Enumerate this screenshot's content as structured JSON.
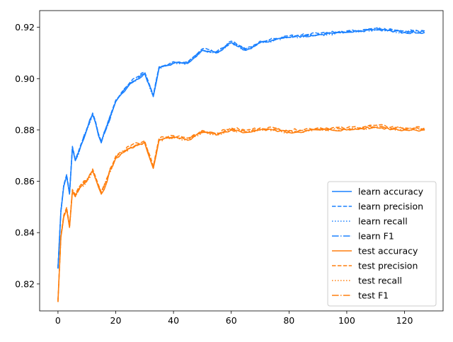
{
  "chart_data": {
    "type": "line",
    "title": "",
    "xlabel": "",
    "ylabel": "",
    "xlim": [
      -6.35,
      133.35
    ],
    "ylim": [
      0.8095,
      0.9265
    ],
    "xticks": [
      0,
      20,
      40,
      60,
      80,
      100,
      120
    ],
    "yticks": [
      0.82,
      0.84,
      0.86,
      0.88,
      0.9,
      0.92
    ],
    "ytick_labels": [
      "0.82",
      "0.84",
      "0.86",
      "0.88",
      "0.90",
      "0.92"
    ],
    "grid": false,
    "legend": {
      "placement": "lower-right"
    },
    "x_range": [
      0,
      127
    ],
    "anchors": {
      "x": [
        0,
        1,
        2,
        3,
        4,
        5,
        6,
        8,
        10,
        12,
        15,
        20,
        25,
        30,
        33,
        35,
        40,
        45,
        50,
        55,
        60,
        65,
        70,
        75,
        80,
        90,
        100,
        110,
        120,
        127
      ],
      "learn": [
        0.826,
        0.848,
        0.858,
        0.862,
        0.855,
        0.873,
        0.868,
        0.874,
        0.88,
        0.886,
        0.875,
        0.891,
        0.898,
        0.902,
        0.893,
        0.904,
        0.906,
        0.906,
        0.911,
        0.91,
        0.914,
        0.911,
        0.914,
        0.915,
        0.916,
        0.917,
        0.918,
        0.919,
        0.918,
        0.918
      ],
      "test": [
        0.813,
        0.838,
        0.846,
        0.849,
        0.842,
        0.856,
        0.854,
        0.858,
        0.86,
        0.864,
        0.855,
        0.869,
        0.873,
        0.875,
        0.865,
        0.876,
        0.877,
        0.876,
        0.879,
        0.878,
        0.88,
        0.879,
        0.88,
        0.88,
        0.879,
        0.88,
        0.88,
        0.881,
        0.88,
        0.88
      ]
    },
    "series": [
      {
        "name": "learn accuracy",
        "group": "learn",
        "style": "solid",
        "color": "#1a80ff",
        "offset": 0.0,
        "seed": 1
      },
      {
        "name": "learn precision",
        "group": "learn",
        "style": "dashed",
        "color": "#1a80ff",
        "offset": 0.0006,
        "seed": 2
      },
      {
        "name": "learn recall",
        "group": "learn",
        "style": "dotted",
        "color": "#1a80ff",
        "offset": 0.0,
        "seed": 3
      },
      {
        "name": "learn F1",
        "group": "learn",
        "style": "dashdot",
        "color": "#1a80ff",
        "offset": 0.0002,
        "seed": 4
      },
      {
        "name": "test accuracy",
        "group": "test",
        "style": "solid",
        "color": "#ff7f0e",
        "offset": 0.0,
        "seed": 5
      },
      {
        "name": "test precision",
        "group": "test",
        "style": "dashed",
        "color": "#ff7f0e",
        "offset": 0.0008,
        "seed": 6
      },
      {
        "name": "test recall",
        "group": "test",
        "style": "dotted",
        "color": "#ff7f0e",
        "offset": 0.0,
        "seed": 7
      },
      {
        "name": "test F1",
        "group": "test",
        "style": "dashdot",
        "color": "#ff7f0e",
        "offset": 0.0003,
        "seed": 8
      }
    ]
  }
}
